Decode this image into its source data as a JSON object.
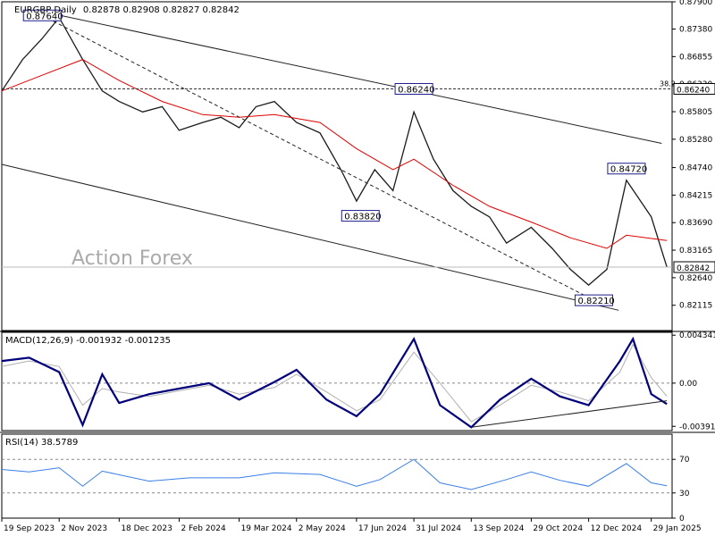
{
  "chart_data": {
    "type": "line",
    "symbol": "EURGBP,Daily",
    "ohlc": "0.82878 0.82908 0.82827 0.82842",
    "watermark": "Action Forex",
    "price_axis": {
      "range": [
        0.8211,
        0.879
      ],
      "ticks": [
        "0.87900",
        "0.87380",
        "0.86855",
        "0.86330",
        "0.85805",
        "0.85280",
        "0.84740",
        "0.84215",
        "0.83690",
        "0.83165",
        "0.82640",
        "0.82115"
      ],
      "current": "0.82842",
      "level": "0.86240",
      "fib_label": "38.2"
    },
    "price": {
      "x": [
        "2023-09-19",
        "2023-10-05",
        "2023-10-20",
        "2023-11-02",
        "2023-11-20",
        "2023-12-05",
        "2023-12-18",
        "2024-01-05",
        "2024-01-20",
        "2024-02-02",
        "2024-02-20",
        "2024-03-05",
        "2024-03-19",
        "2024-04-01",
        "2024-04-15",
        "2024-05-02",
        "2024-05-20",
        "2024-06-05",
        "2024-06-17",
        "2024-07-01",
        "2024-07-15",
        "2024-07-31",
        "2024-08-15",
        "2024-08-30",
        "2024-09-13",
        "2024-09-27",
        "2024-10-10",
        "2024-10-29",
        "2024-11-14",
        "2024-11-28",
        "2024-12-12",
        "2024-12-26",
        "2025-01-10",
        "2025-01-29",
        "2025-02-10"
      ],
      "close": [
        0.862,
        0.868,
        0.872,
        0.876,
        0.868,
        0.862,
        0.86,
        0.858,
        0.859,
        0.8545,
        0.856,
        0.857,
        0.855,
        0.859,
        0.86,
        0.856,
        0.854,
        0.847,
        0.841,
        0.847,
        0.843,
        0.858,
        0.849,
        0.843,
        0.84,
        0.838,
        0.833,
        0.836,
        0.832,
        0.828,
        0.825,
        0.828,
        0.845,
        0.838,
        0.8284
      ]
    },
    "ma": {
      "x": [
        "2023-09-19",
        "2023-10-20",
        "2023-11-20",
        "2023-12-18",
        "2024-01-20",
        "2024-02-20",
        "2024-03-19",
        "2024-04-15",
        "2024-05-20",
        "2024-06-17",
        "2024-07-15",
        "2024-07-31",
        "2024-08-30",
        "2024-09-27",
        "2024-10-29",
        "2024-11-28",
        "2024-12-26",
        "2025-01-10",
        "2025-02-10"
      ],
      "values": [
        0.862,
        0.865,
        0.868,
        0.864,
        0.86,
        0.8575,
        0.857,
        0.8575,
        0.856,
        0.851,
        0.847,
        0.849,
        0.844,
        0.84,
        0.837,
        0.834,
        0.832,
        0.8345,
        0.8335
      ]
    },
    "channel": {
      "upper": {
        "x": [
          "2023-10-15",
          "2025-02-06"
        ],
        "y": [
          0.8774,
          0.852
        ]
      },
      "lower": {
        "x": [
          "2023-09-19",
          "2025-01-04"
        ],
        "y": [
          0.848,
          0.8202
        ]
      },
      "dashed": {
        "x": [
          "2023-10-20",
          "2024-12-16"
        ],
        "y": [
          0.8764,
          0.8221
        ]
      }
    },
    "annotations": [
      {
        "label": "0.87640",
        "x": "2023-10-20",
        "y": 0.8764
      },
      {
        "label": "0.86240",
        "x": "2024-07-31",
        "y": 0.8624
      },
      {
        "label": "0.83820",
        "x": "2024-06-20",
        "y": 0.8382
      },
      {
        "label": "0.84720",
        "x": "2025-01-10",
        "y": 0.8472
      },
      {
        "label": "0.82210",
        "x": "2024-12-16",
        "y": 0.8221
      }
    ],
    "macd": {
      "title": "MACD(12,26,9) -0.001932 -0.001235",
      "ticks": [
        "0.004341",
        "0.00",
        "-0.003916"
      ],
      "range": [
        -0.0043,
        0.0046
      ],
      "x": [
        "2023-09-19",
        "2023-10-10",
        "2023-11-02",
        "2023-11-20",
        "2023-12-05",
        "2023-12-18",
        "2024-01-10",
        "2024-02-02",
        "2024-02-25",
        "2024-03-19",
        "2024-04-15",
        "2024-05-02",
        "2024-05-25",
        "2024-06-17",
        "2024-07-05",
        "2024-07-31",
        "2024-08-20",
        "2024-09-13",
        "2024-10-05",
        "2024-10-29",
        "2024-11-20",
        "2024-12-12",
        "2025-01-05",
        "2025-01-15",
        "2025-01-29",
        "2025-02-10"
      ],
      "macd": [
        0.002,
        0.0023,
        0.001,
        -0.0038,
        0.0008,
        -0.0018,
        -0.001,
        -0.0005,
        0.0,
        -0.0015,
        0.0001,
        0.0012,
        -0.0015,
        -0.003,
        -0.001,
        0.004,
        -0.002,
        -0.004,
        -0.0015,
        0.0004,
        -0.0012,
        -0.002,
        0.002,
        0.004,
        -0.001,
        -0.0019
      ],
      "signal": [
        0.0015,
        0.002,
        0.0015,
        -0.002,
        -0.0005,
        -0.0008,
        -0.0012,
        -0.0007,
        -0.0002,
        -0.001,
        -0.0004,
        0.0008,
        -0.0008,
        -0.0025,
        -0.0015,
        0.0028,
        0.0,
        -0.0035,
        -0.002,
        -0.0002,
        -0.0008,
        -0.0016,
        0.001,
        0.0035,
        0.0005,
        -0.0012
      ],
      "trend": {
        "x": [
          "2024-09-13",
          "2025-02-10"
        ],
        "y": [
          -0.004,
          -0.0016
        ]
      }
    },
    "rsi": {
      "title": "RSI(14) 38.5789",
      "ticks": [
        "70",
        "30",
        "0"
      ],
      "range": [
        0,
        100
      ],
      "x": [
        "2023-09-19",
        "2023-10-10",
        "2023-11-02",
        "2023-11-20",
        "2023-12-05",
        "2024-01-10",
        "2024-02-10",
        "2024-03-19",
        "2024-04-15",
        "2024-05-20",
        "2024-06-17",
        "2024-07-05",
        "2024-07-31",
        "2024-08-20",
        "2024-09-13",
        "2024-10-10",
        "2024-10-29",
        "2024-11-20",
        "2024-12-12",
        "2025-01-10",
        "2025-01-29",
        "2025-02-10"
      ],
      "values": [
        58,
        55,
        60,
        38,
        56,
        44,
        48,
        48,
        54,
        52,
        38,
        46,
        70,
        42,
        34,
        46,
        55,
        45,
        38,
        65,
        42,
        38.6
      ]
    },
    "x_ticks": [
      "19 Sep 2023",
      "2 Nov 2023",
      "18 Dec 2023",
      "2 Feb 2024",
      "19 Mar 2024",
      "2 May 2024",
      "17 Jun 2024",
      "31 Jul 2024",
      "13 Sep 2024",
      "29 Oct 2024",
      "12 Dec 2024",
      "29 Jan 2025"
    ],
    "x_tick_dates": [
      "2023-09-19",
      "2023-11-02",
      "2023-12-18",
      "2024-02-02",
      "2024-03-19",
      "2024-05-02",
      "2024-06-17",
      "2024-07-31",
      "2024-09-13",
      "2024-10-29",
      "2024-12-12",
      "2025-01-29"
    ],
    "x_range": [
      "2023-09-19",
      "2025-02-14"
    ],
    "colors": {
      "price": "#1a1a1a",
      "ma": "#e00000",
      "macd": "#00007a",
      "signal": "#b0b0b0",
      "rsi": "#3a7ee8",
      "box": "#1c1c8c",
      "grid": "#888888"
    }
  }
}
